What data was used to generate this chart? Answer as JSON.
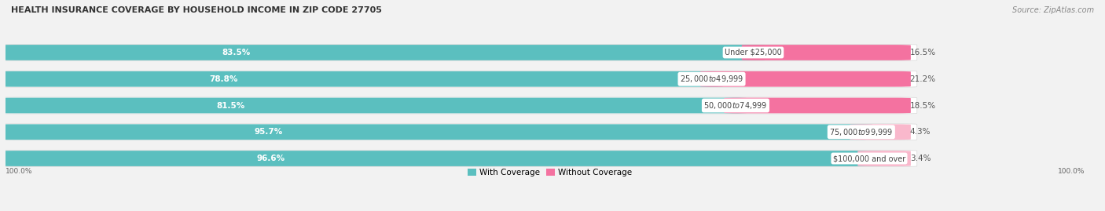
{
  "title": "HEALTH INSURANCE COVERAGE BY HOUSEHOLD INCOME IN ZIP CODE 27705",
  "source": "Source: ZipAtlas.com",
  "categories": [
    "Under $25,000",
    "$25,000 to $49,999",
    "$50,000 to $74,999",
    "$75,000 to $99,999",
    "$100,000 and over"
  ],
  "with_coverage": [
    83.5,
    78.8,
    81.5,
    95.7,
    96.6
  ],
  "without_coverage": [
    16.5,
    21.2,
    18.5,
    4.3,
    3.4
  ],
  "color_coverage": "#5BBFBF",
  "color_no_coverage": "#F472A0",
  "color_no_coverage_light": "#F9B8CC",
  "bg_color": "#f2f2f2",
  "bar_bg": "#e8e8e8",
  "bar_bg_inner": "#ffffff",
  "figsize": [
    14.06,
    2.69
  ],
  "dpi": 100,
  "title_fontsize": 8.0,
  "label_fontsize": 7.5,
  "source_fontsize": 7.0,
  "legend_fontsize": 7.5
}
